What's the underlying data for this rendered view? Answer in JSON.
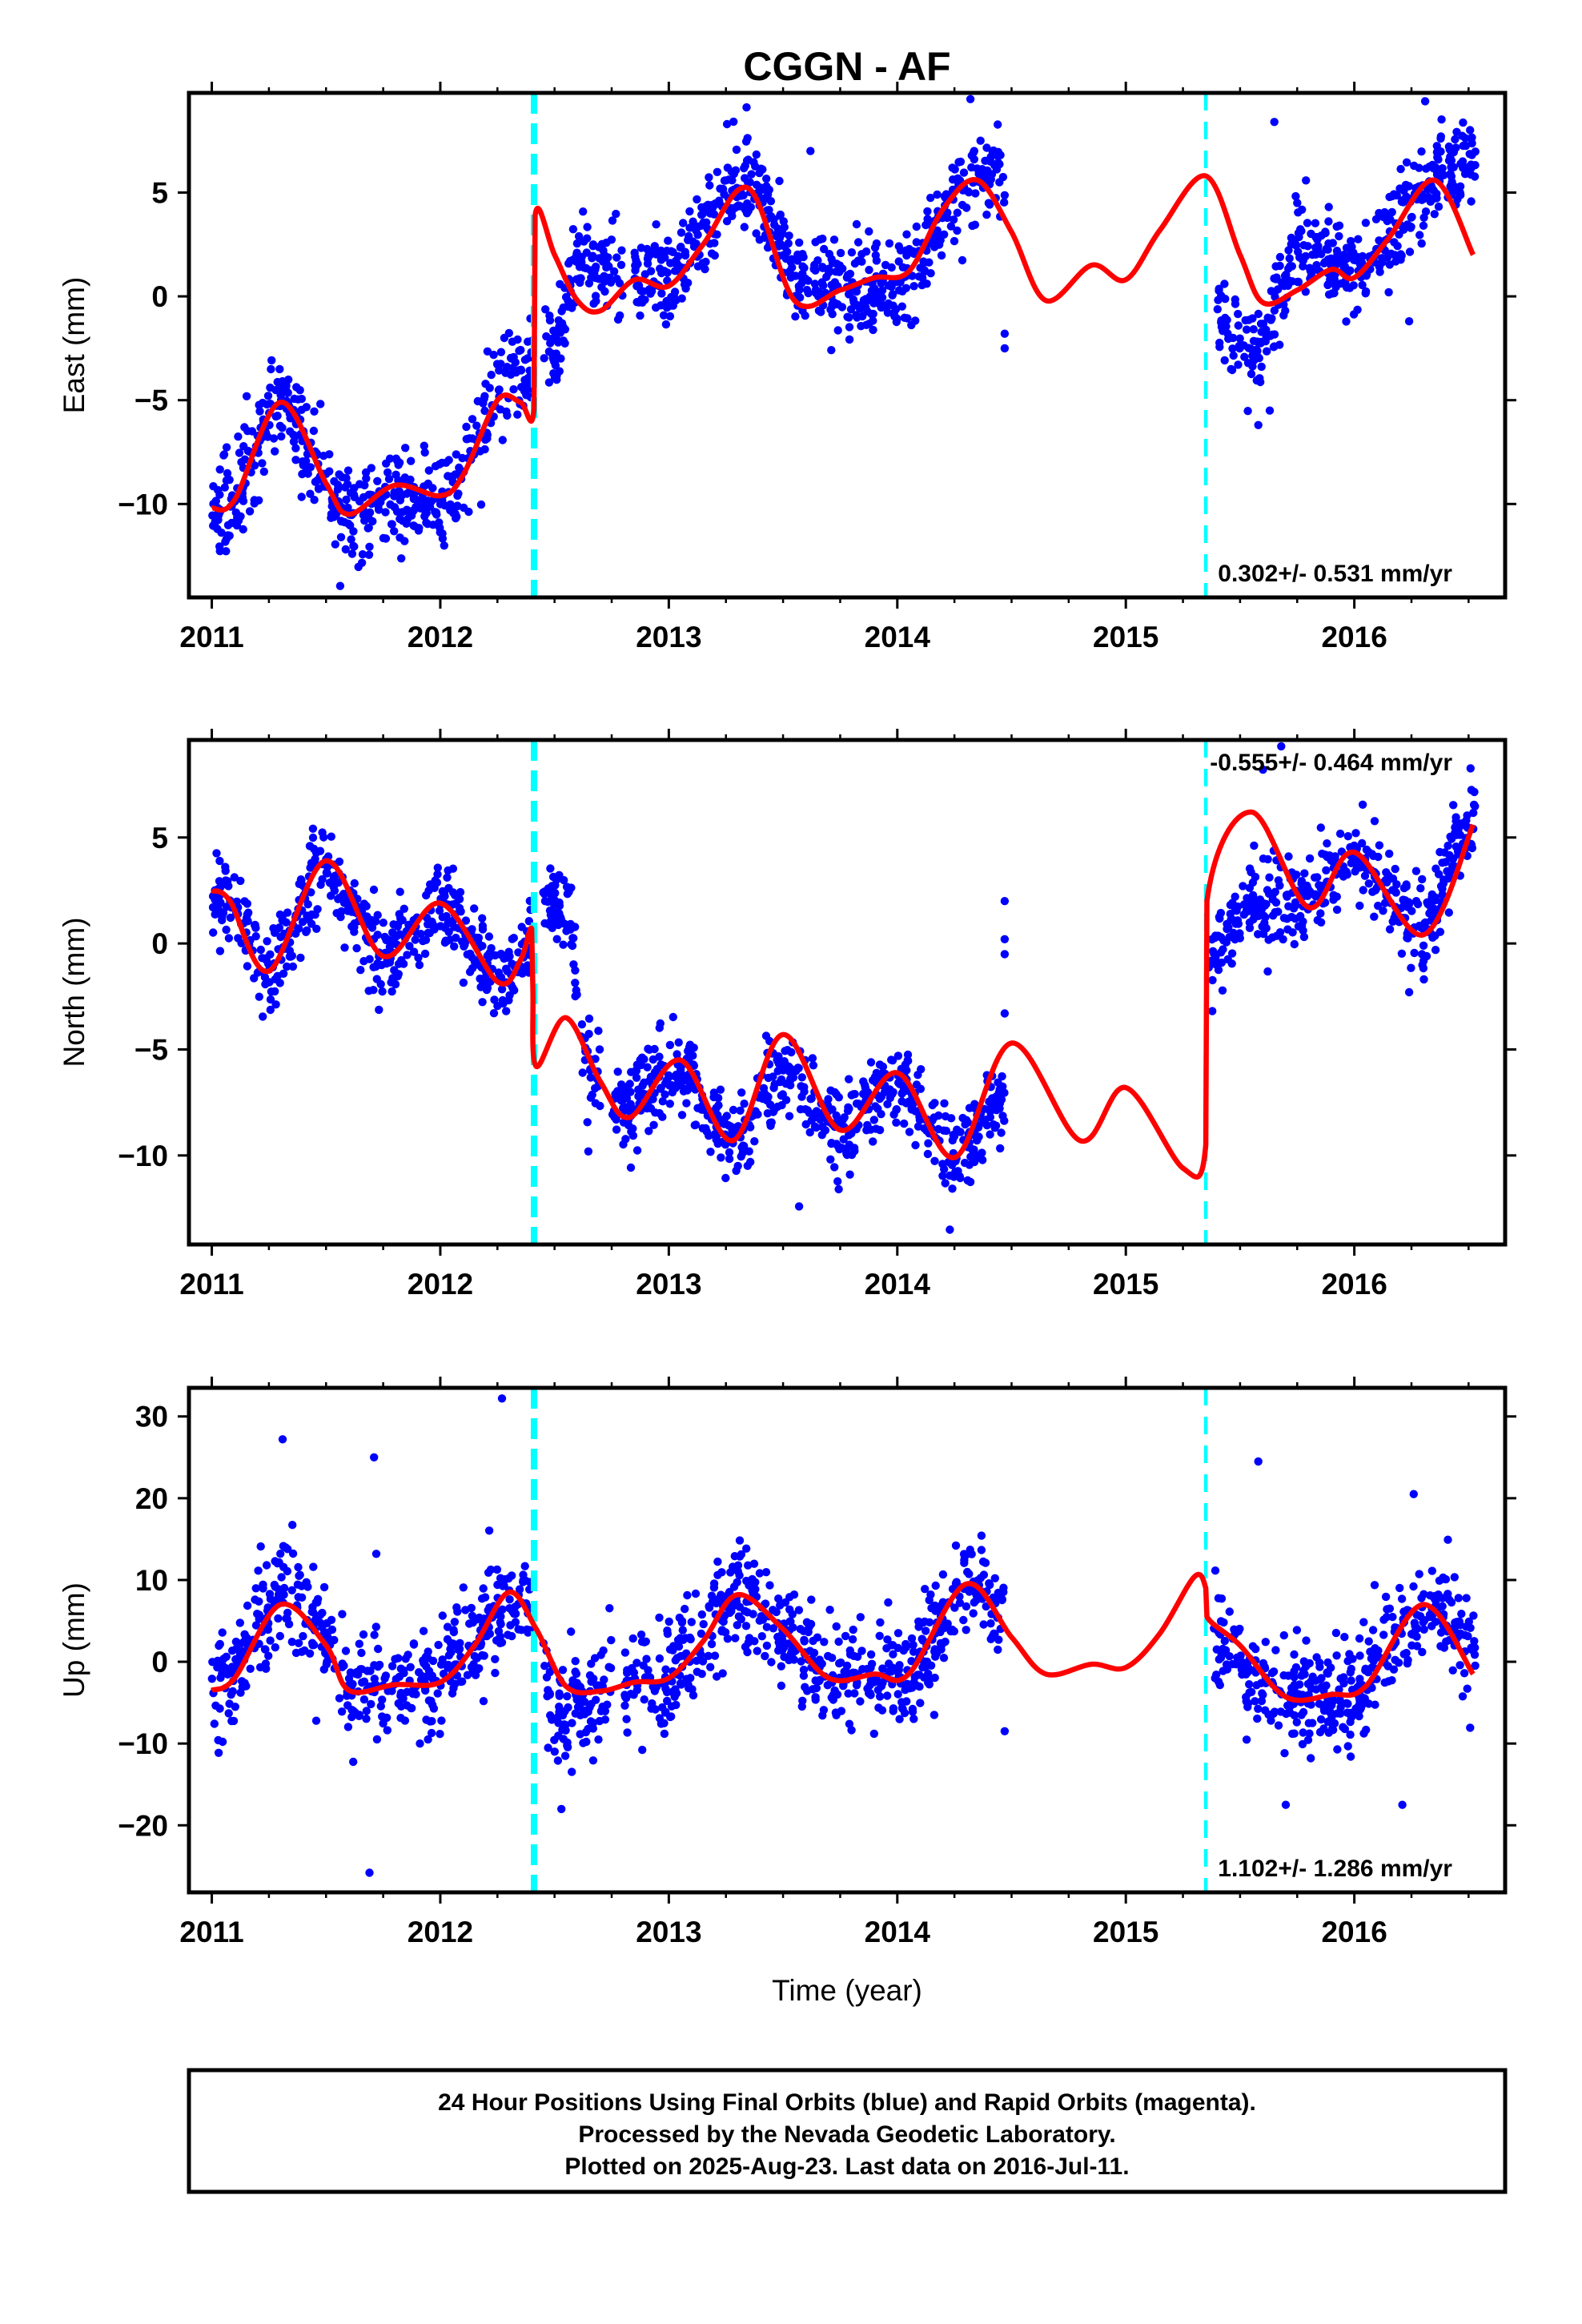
{
  "title": "CGGN - AF",
  "colors": {
    "points": "#0000ff",
    "model": "#ff0000",
    "offset_lines": "#00ffff",
    "frame": "#000000"
  },
  "footer": {
    "line1": "24 Hour Positions Using Final Orbits (blue) and Rapid Orbits (magenta).",
    "line2": "Processed by the Nevada Geodetic Laboratory.",
    "line3": "Plotted on 2025-Aug-23. Last data on 2016-Jul-11."
  },
  "chart_data": [
    {
      "type": "scatter",
      "component": "East",
      "ylabel": "East (mm)",
      "xlabel": "",
      "xlim": [
        2010.9,
        2016.66
      ],
      "ylim": [
        -14.5,
        9.8
      ],
      "xticks": [
        2011,
        2012,
        2013,
        2014,
        2015,
        2016
      ],
      "yticks": [
        -10,
        -5,
        0,
        5
      ],
      "rate_label": "0.302+/- 0.531 mm/yr",
      "rate_position": "bottom-right",
      "offsets": [
        {
          "x": 2012.41,
          "style": "thick-dashed"
        },
        {
          "x": 2015.35,
          "style": "dashed"
        }
      ],
      "data_segments": [
        [
          2011.0,
          2012.4
        ],
        [
          2012.45,
          2012.8
        ],
        [
          2012.85,
          2014.47
        ],
        [
          2015.4,
          2016.53
        ]
      ],
      "model": {
        "name": "model fit",
        "x": [
          2011.0,
          2011.1,
          2011.3,
          2011.5,
          2011.6,
          2011.8,
          2012.0,
          2012.1,
          2012.25,
          2012.35,
          2012.41,
          2012.415,
          2012.5,
          2012.6,
          2012.7,
          2012.85,
          2013.0,
          2013.15,
          2013.35,
          2013.55,
          2013.75,
          2013.9,
          2014.05,
          2014.2,
          2014.35,
          2014.5,
          2014.65,
          2014.85,
          2015.0,
          2015.15,
          2015.35,
          2015.5,
          2015.6,
          2015.75,
          2015.9,
          2016.0,
          2016.15,
          2016.35,
          2016.52
        ],
        "y": [
          -10.2,
          -9.8,
          -5.1,
          -9.0,
          -10.5,
          -9.1,
          -9.6,
          -8.6,
          -5.0,
          -5.1,
          -5.4,
          3.9,
          2.0,
          -0.2,
          -0.7,
          0.8,
          0.5,
          2.5,
          5.2,
          -0.2,
          0.3,
          0.9,
          1.2,
          4.2,
          5.6,
          3.1,
          -0.2,
          1.5,
          0.8,
          3.2,
          5.8,
          2.0,
          -0.3,
          0.3,
          1.3,
          0.9,
          2.8,
          5.6,
          2.0
        ]
      },
      "points": {
        "name": "24 hour positions",
        "baseline": {
          "x": [
            2011.0,
            2011.1,
            2011.3,
            2011.5,
            2011.6,
            2011.8,
            2012.0,
            2012.1,
            2012.25,
            2012.35,
            2012.41,
            2012.415,
            2012.5,
            2012.6,
            2012.7,
            2012.85,
            2013.0,
            2013.15,
            2013.35,
            2013.55,
            2013.75,
            2013.9,
            2014.05,
            2014.2,
            2014.35,
            2014.5,
            2015.35,
            2015.4,
            2015.5,
            2015.6,
            2015.75,
            2015.9,
            2016.0,
            2016.15,
            2016.35,
            2016.52
          ],
          "y": [
            -10.2,
            -9.8,
            -4.6,
            -9.0,
            -11.0,
            -9.5,
            -10.0,
            -8.6,
            -4.0,
            -3.5,
            -3.0,
            2.0,
            -3.5,
            2.0,
            1.0,
            1.0,
            1.0,
            3.5,
            6.0,
            1.0,
            0.5,
            0.0,
            0.5,
            4.0,
            6.0,
            6.0,
            -1.0,
            -1.0,
            -2.5,
            -2.5,
            3.0,
            1.5,
            1.0,
            3.0,
            6.0,
            6.5
          ]
        },
        "scatter_sd": 1.1,
        "count": 1650,
        "outliers": [
          [
            2013.62,
            7.0
          ],
          [
            2014.47,
            -2.5
          ],
          [
            2014.47,
            -1.8
          ],
          [
            2015.58,
            -6.2
          ],
          [
            2015.63,
            -5.5
          ],
          [
            2015.65,
            8.4
          ],
          [
            2015.75,
            4.5
          ],
          [
            2016.24,
            -1.2
          ],
          [
            2016.31,
            9.4
          ],
          [
            2014.32,
            9.5
          ]
        ]
      }
    },
    {
      "type": "scatter",
      "component": "North",
      "ylabel": "North (mm)",
      "xlabel": "",
      "xlim": [
        2010.9,
        2016.66
      ],
      "ylim": [
        -14.2,
        9.6
      ],
      "xticks": [
        2011,
        2012,
        2013,
        2014,
        2015,
        2016
      ],
      "yticks": [
        -10,
        -5,
        0,
        5
      ],
      "rate_label": "-0.555+/- 0.464 mm/yr",
      "rate_position": "top-right",
      "offsets": [
        {
          "x": 2012.41,
          "style": "thick-dashed"
        },
        {
          "x": 2015.35,
          "style": "dashed"
        }
      ],
      "data_segments": [
        [
          2011.0,
          2012.4
        ],
        [
          2012.45,
          2012.7
        ],
        [
          2012.75,
          2014.47
        ],
        [
          2015.36,
          2016.53
        ]
      ],
      "model": {
        "name": "model fit",
        "x": [
          2011.0,
          2011.08,
          2011.25,
          2011.5,
          2011.75,
          2012.0,
          2012.25,
          2012.35,
          2012.4,
          2012.405,
          2012.42,
          2012.55,
          2012.7,
          2012.83,
          2013.05,
          2013.28,
          2013.5,
          2013.75,
          2014.0,
          2014.25,
          2014.5,
          2014.8,
          2015.0,
          2015.25,
          2015.35,
          2015.355,
          2015.55,
          2015.8,
          2016.0,
          2016.3,
          2016.52
        ],
        "y": [
          2.5,
          2.0,
          -1.3,
          3.9,
          -0.6,
          1.9,
          -1.8,
          -0.8,
          0.7,
          -2.2,
          -5.8,
          -3.5,
          -6.5,
          -8.2,
          -5.5,
          -9.3,
          -4.3,
          -8.8,
          -6.1,
          -10.1,
          -4.7,
          -9.3,
          -6.8,
          -10.6,
          -9.5,
          2.0,
          6.2,
          1.7,
          4.3,
          0.4,
          5.6
        ]
      },
      "points": {
        "name": "24 hour positions",
        "baseline": {
          "x": [
            2011.0,
            2011.08,
            2011.25,
            2011.5,
            2011.75,
            2012.0,
            2012.25,
            2012.4,
            2012.45,
            2012.55,
            2012.65,
            2012.8,
            2013.05,
            2013.28,
            2013.5,
            2013.75,
            2014.0,
            2014.25,
            2014.47,
            2015.36,
            2015.55,
            2015.8,
            2016.0,
            2016.3,
            2016.52
          ],
          "y": [
            2.5,
            2.0,
            -1.3,
            3.9,
            -0.6,
            1.9,
            -1.8,
            0.3,
            1.5,
            1.8,
            -6.0,
            -8.0,
            -5.5,
            -9.8,
            -6.0,
            -8.8,
            -6.1,
            -10.1,
            -7.5,
            -1.0,
            2.0,
            2.0,
            4.3,
            0.4,
            6.5
          ]
        },
        "scatter_sd": 1.0,
        "count": 1600,
        "outliers": [
          [
            2014.47,
            2.0
          ],
          [
            2014.47,
            -0.5
          ],
          [
            2014.47,
            0.2
          ],
          [
            2014.47,
            -3.3
          ],
          [
            2015.6,
            8.2
          ],
          [
            2015.68,
            9.3
          ],
          [
            2016.24,
            -2.3
          ],
          [
            2013.57,
            -12.4
          ],
          [
            2014.23,
            -13.5
          ]
        ]
      }
    },
    {
      "type": "scatter",
      "component": "Up",
      "ylabel": "Up (mm)",
      "xlabel": "Time (year)",
      "xlim": [
        2010.9,
        2016.66
      ],
      "ylim": [
        -28.2,
        33.5
      ],
      "xticks": [
        2011,
        2012,
        2013,
        2014,
        2015,
        2016
      ],
      "yticks": [
        -20,
        -10,
        0,
        10,
        20,
        30
      ],
      "rate_label": "1.102+/- 1.286 mm/yr",
      "rate_position": "bottom-right",
      "offsets": [
        {
          "x": 2012.41,
          "style": "thick-dashed"
        },
        {
          "x": 2015.35,
          "style": "dashed"
        }
      ],
      "data_segments": [
        [
          2011.0,
          2012.4
        ],
        [
          2012.45,
          2012.75
        ],
        [
          2012.8,
          2014.47
        ],
        [
          2015.38,
          2016.53
        ]
      ],
      "model": {
        "name": "model fit",
        "x": [
          2011.0,
          2011.1,
          2011.3,
          2011.5,
          2011.6,
          2011.8,
          2012.0,
          2012.15,
          2012.3,
          2012.42,
          2012.55,
          2012.7,
          2012.85,
          2013.0,
          2013.15,
          2013.3,
          2013.5,
          2013.7,
          2013.9,
          2014.05,
          2014.3,
          2014.5,
          2014.65,
          2014.85,
          2015.0,
          2015.15,
          2015.3,
          2015.35,
          2015.355,
          2015.5,
          2015.7,
          2015.9,
          2016.05,
          2016.3,
          2016.52
        ],
        "y": [
          -3.5,
          -2.0,
          7.0,
          2.0,
          -3.5,
          -2.8,
          -2.5,
          2.0,
          8.5,
          4.0,
          -3.0,
          -3.6,
          -2.5,
          -2.0,
          2.5,
          8.2,
          4.0,
          -2.0,
          -1.5,
          -1.5,
          9.5,
          3.0,
          -1.5,
          -0.3,
          -0.7,
          3.5,
          10.4,
          9.0,
          5.5,
          2.0,
          -4.3,
          -4.0,
          -3.0,
          7.0,
          -1.5
        ]
      },
      "points": {
        "name": "24 hour positions",
        "baseline": {
          "x": [
            2011.0,
            2011.1,
            2011.3,
            2011.5,
            2011.6,
            2011.8,
            2012.0,
            2012.15,
            2012.3,
            2012.42,
            2012.5,
            2012.6,
            2012.75,
            2012.85,
            2013.0,
            2013.15,
            2013.3,
            2013.5,
            2013.7,
            2013.9,
            2014.05,
            2014.3,
            2014.47,
            2015.38,
            2015.5,
            2015.7,
            2015.9,
            2016.05,
            2016.3,
            2016.52
          ],
          "y": [
            -3.5,
            -2.0,
            9.0,
            3.0,
            -3.5,
            -2.8,
            -2.5,
            2.0,
            9.0,
            6.0,
            -7.0,
            -4.0,
            -3.6,
            -2.5,
            -2.0,
            2.5,
            9.0,
            4.0,
            -2.0,
            -1.5,
            -1.5,
            9.5,
            6.0,
            4.0,
            -2.0,
            -4.3,
            -4.0,
            -3.0,
            7.0,
            1.0
          ]
        },
        "scatter_sd": 3.2,
        "count": 1550,
        "outliers": [
          [
            2011.31,
            27.2
          ],
          [
            2011.71,
            25.0
          ],
          [
            2012.27,
            32.2
          ],
          [
            2011.69,
            -25.8
          ],
          [
            2012.53,
            -18.0
          ],
          [
            2011.72,
            13.2
          ],
          [
            2015.58,
            24.5
          ],
          [
            2015.7,
            -17.5
          ],
          [
            2016.21,
            -17.5
          ],
          [
            2016.26,
            20.5
          ],
          [
            2014.47,
            -8.5
          ]
        ]
      }
    }
  ]
}
